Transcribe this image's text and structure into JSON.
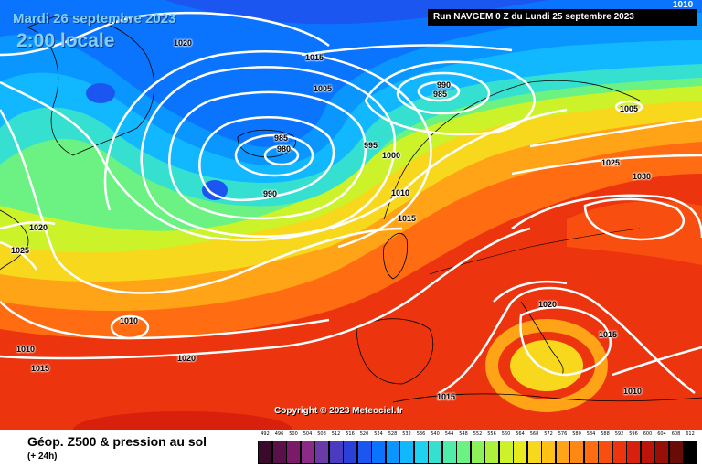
{
  "header": {
    "date": "Mardi 26 septembre 2023",
    "time": "2:00 locale",
    "run": "Run NAVGEM 0 Z du Lundi 25 septembre 2023",
    "corner_value": "1010"
  },
  "copyright": "Copyright © 2023 Meteociel.fr",
  "footer": {
    "title": "Géop. Z500 & pression au sol",
    "subtitle": "(+ 24h)"
  },
  "isobar_labels": [
    "1020",
    "1015",
    "1005",
    "990",
    "985",
    "985",
    "980",
    "995",
    "1000",
    "990",
    "1010",
    "1015",
    "1005",
    "1025",
    "1030",
    "1020",
    "1025",
    "1010",
    "1010",
    "1015",
    "1020",
    "1020",
    "1015",
    "1015",
    "1010"
  ],
  "legend": {
    "values": [
      "492",
      "496",
      "500",
      "504",
      "508",
      "512",
      "516",
      "520",
      "524",
      "528",
      "532",
      "536",
      "540",
      "544",
      "548",
      "552",
      "556",
      "560",
      "564",
      "568",
      "572",
      "576",
      "580",
      "584",
      "588",
      "592",
      "596",
      "600",
      "604",
      "608",
      "612"
    ],
    "colors": [
      "#3a0a2a",
      "#5a1048",
      "#7a1a68",
      "#8c2a88",
      "#6a3aa8",
      "#4a3cc0",
      "#2a40d8",
      "#1c56f0",
      "#0a74ff",
      "#0a96ff",
      "#12b8ff",
      "#1ed2f0",
      "#36e0d0",
      "#50ecaa",
      "#6cf282",
      "#8cf25a",
      "#acf23c",
      "#ccf22a",
      "#e8ea20",
      "#f8d81c",
      "#ffc018",
      "#ffa416",
      "#ff8814",
      "#ff6c12",
      "#f84e10",
      "#ec340e",
      "#d8200c",
      "#bc140a",
      "#961008",
      "#6a0c06",
      "#000000"
    ]
  },
  "colors": {
    "deep_blue": "#1c56f0",
    "mid_blue": "#0a96ff",
    "cyan": "#1ed2f0",
    "green": "#6cf282",
    "yellow": "#f8d81c",
    "orange": "#ff8814",
    "red": "#ec340e"
  }
}
